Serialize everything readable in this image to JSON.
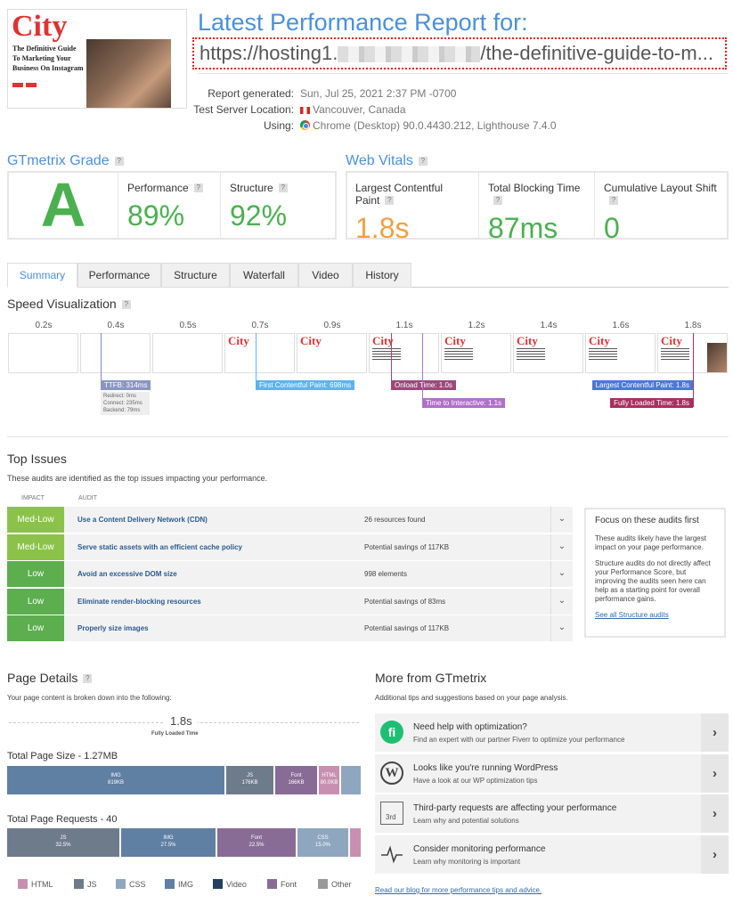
{
  "header": {
    "thumb_logo": "City",
    "thumb_heading": "The Definitive Guide To Marketing Your Business On Instagram",
    "title": "Latest Performance Report for:",
    "url_prefix": "https://hosting1.",
    "url_suffix": "/the-definitive-guide-to-m...",
    "meta": [
      {
        "label": "Report generated:",
        "value": "Sun, Jul 25, 2021 2:37 PM -0700"
      },
      {
        "label": "Test Server Location:",
        "value": "Vancouver, Canada"
      },
      {
        "label": "Using:",
        "value": "Chrome (Desktop) 90.0.4430.212, Lighthouse 7.4.0"
      }
    ]
  },
  "grade": {
    "heading": "GTmetrix Grade",
    "help": "?",
    "letter": "A",
    "performance_label": "Performance",
    "performance": "89%",
    "structure_label": "Structure",
    "structure": "92%"
  },
  "vitals": {
    "heading": "Web Vitals",
    "lcp_label": "Largest Contentful Paint",
    "lcp": "1.8s",
    "tbt_label": "Total Blocking Time",
    "tbt": "87ms",
    "cls_label": "Cumulative Layout Shift",
    "cls": "0"
  },
  "colors": {
    "green": "#4caf50",
    "orange": "#f0a040",
    "blue": "#4a90d9",
    "medlow": "#8bc34a",
    "low": "#5cae4f"
  },
  "tabs": [
    "Summary",
    "Performance",
    "Structure",
    "Waterfall",
    "Video",
    "History"
  ],
  "speed": {
    "heading": "Speed Visualization",
    "times": [
      "0.2s",
      "0.4s",
      "0.5s",
      "0.7s",
      "0.9s",
      "1.1s",
      "1.2s",
      "1.4s",
      "1.6s",
      "1.8s"
    ],
    "frame_logo": "City",
    "markers": {
      "ttfb": "TTFB: 314ms",
      "redirect": "Redirect: 0ms",
      "connect": "Connect: 235ms",
      "backend": "Backend: 79ms",
      "fcp": "First Contentful Paint: 698ms",
      "onload": "Onload Time: 1.0s",
      "tti": "Time to Interactive: 1.1s",
      "lcp": "Largest Contentful Paint: 1.8s",
      "fully": "Fully Loaded Time: 1.8s"
    }
  },
  "issues": {
    "heading": "Top Issues",
    "subtitle": "These audits are identified as the top issues impacting your performance.",
    "col_impact": "IMPACT",
    "col_audit": "AUDIT",
    "rows": [
      {
        "impact": "Med-Low",
        "audit": "Use a Content Delivery Network (CDN)",
        "value": "26 resources found"
      },
      {
        "impact": "Med-Low",
        "audit": "Serve static assets with an efficient cache policy",
        "value": "Potential savings of 117KB"
      },
      {
        "impact": "Low",
        "audit": "Avoid an excessive DOM size",
        "value": "998 elements"
      },
      {
        "impact": "Low",
        "audit": "Eliminate render-blocking resources",
        "value": "Potential savings of 83ms"
      },
      {
        "impact": "Low",
        "audit": "Properly size images",
        "value": "Potential savings of 117KB"
      }
    ],
    "side": {
      "title": "Focus on these audits first",
      "p1": "These audits likely have the largest impact on your page performance.",
      "p2": "Structure audits do not directly affect your Performance Score, but improving the audits seen here can help as a starting point for overall performance gains.",
      "link": "See all Structure audits"
    }
  },
  "details": {
    "heading": "Page Details",
    "subtitle": "Your page content is broken down into the following:",
    "fully_loaded": "1.8s",
    "fully_loaded_label": "Fully Loaded Time",
    "size_title": "Total Page Size - 1.27MB",
    "size": [
      {
        "type": "IMG",
        "value": "819KB"
      },
      {
        "type": "JS",
        "value": "176KB"
      },
      {
        "type": "Font",
        "value": "166KB"
      },
      {
        "type": "HTML",
        "value": "80.0KB"
      }
    ],
    "req_title": "Total Page Requests - 40",
    "requests": [
      {
        "type": "JS",
        "value": "32.5%"
      },
      {
        "type": "IMG",
        "value": "27.5%"
      },
      {
        "type": "Font",
        "value": "22.5%"
      },
      {
        "type": "CSS",
        "value": "15.0%"
      }
    ],
    "legend": [
      "HTML",
      "JS",
      "CSS",
      "IMG",
      "Video",
      "Font",
      "Other"
    ]
  },
  "more": {
    "heading": "More from GTmetrix",
    "subtitle": "Additional tips and suggestions based on your page analysis.",
    "icon_3rd": "3rd",
    "tips": [
      {
        "title": "Need help with optimization?",
        "desc": "Find an expert with our partner Fiverr to optimize your performance"
      },
      {
        "title": "Looks like you're running WordPress",
        "desc": "Have a look at our WP optimization tips"
      },
      {
        "title": "Third-party requests are affecting your performance",
        "desc": "Learn why and potential solutions"
      },
      {
        "title": "Consider monitoring performance",
        "desc": "Learn why monitoring is important"
      }
    ],
    "blog_link": "Read our blog for more performance tips and advice."
  }
}
